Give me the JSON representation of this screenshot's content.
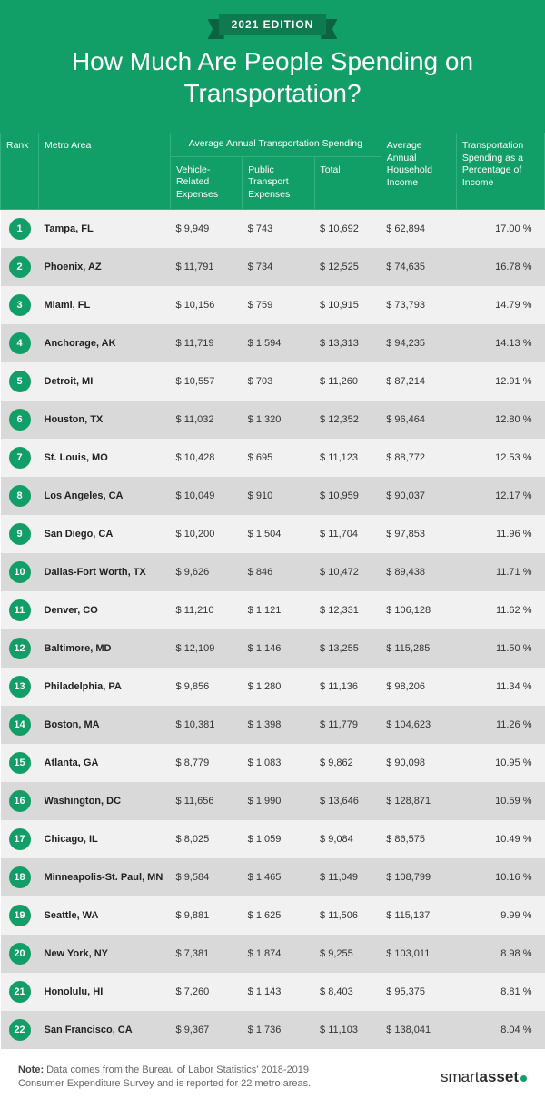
{
  "theme": {
    "primary": "#129e67",
    "primary_dark": "#0d7a50",
    "ribbon_end": "#0b6340",
    "row_odd": "#f1f1f1",
    "row_even": "#d9d9d9",
    "text": "#333333"
  },
  "header": {
    "edition": "2021 EDITION",
    "title": "How Much Are People Spending on Transportation?"
  },
  "table": {
    "columns": {
      "rank": "Rank",
      "metro": "Metro Area",
      "group_spending": "Average Annual Transportation Spending",
      "vehicle": "Vehicle-Related Expenses",
      "public": "Public Transport Expenses",
      "total": "Total",
      "income": "Average Annual Household Income",
      "pct": "Transportation Spending as a Percentage of Income"
    },
    "rows": [
      {
        "rank": 1,
        "metro": "Tampa, FL",
        "vehicle": "9,949",
        "public": "743",
        "total": "10,692",
        "income": "62,894",
        "pct": "17.00 %"
      },
      {
        "rank": 2,
        "metro": "Phoenix, AZ",
        "vehicle": "11,791",
        "public": "734",
        "total": "12,525",
        "income": "74,635",
        "pct": "16.78 %"
      },
      {
        "rank": 3,
        "metro": "Miami, FL",
        "vehicle": "10,156",
        "public": "759",
        "total": "10,915",
        "income": "73,793",
        "pct": "14.79 %"
      },
      {
        "rank": 4,
        "metro": "Anchorage, AK",
        "vehicle": "11,719",
        "public": "1,594",
        "total": "13,313",
        "income": "94,235",
        "pct": "14.13 %"
      },
      {
        "rank": 5,
        "metro": "Detroit, MI",
        "vehicle": "10,557",
        "public": "703",
        "total": "11,260",
        "income": "87,214",
        "pct": "12.91 %"
      },
      {
        "rank": 6,
        "metro": "Houston, TX",
        "vehicle": "11,032",
        "public": "1,320",
        "total": "12,352",
        "income": "96,464",
        "pct": "12.80 %"
      },
      {
        "rank": 7,
        "metro": "St. Louis, MO",
        "vehicle": "10,428",
        "public": "695",
        "total": "11,123",
        "income": "88,772",
        "pct": "12.53 %"
      },
      {
        "rank": 8,
        "metro": "Los Angeles, CA",
        "vehicle": "10,049",
        "public": "910",
        "total": "10,959",
        "income": "90,037",
        "pct": "12.17 %"
      },
      {
        "rank": 9,
        "metro": "San Diego, CA",
        "vehicle": "10,200",
        "public": "1,504",
        "total": "11,704",
        "income": "97,853",
        "pct": "11.96 %"
      },
      {
        "rank": 10,
        "metro": "Dallas-Fort Worth, TX",
        "vehicle": "9,626",
        "public": "846",
        "total": "10,472",
        "income": "89,438",
        "pct": "11.71 %"
      },
      {
        "rank": 11,
        "metro": "Denver, CO",
        "vehicle": "11,210",
        "public": "1,121",
        "total": "12,331",
        "income": "106,128",
        "pct": "11.62 %"
      },
      {
        "rank": 12,
        "metro": "Baltimore, MD",
        "vehicle": "12,109",
        "public": "1,146",
        "total": "13,255",
        "income": "115,285",
        "pct": "11.50 %"
      },
      {
        "rank": 13,
        "metro": "Philadelphia, PA",
        "vehicle": "9,856",
        "public": "1,280",
        "total": "11,136",
        "income": "98,206",
        "pct": "11.34 %"
      },
      {
        "rank": 14,
        "metro": "Boston, MA",
        "vehicle": "10,381",
        "public": "1,398",
        "total": "11,779",
        "income": "104,623",
        "pct": "11.26 %"
      },
      {
        "rank": 15,
        "metro": "Atlanta, GA",
        "vehicle": "8,779",
        "public": "1,083",
        "total": "9,862",
        "income": "90,098",
        "pct": "10.95 %"
      },
      {
        "rank": 16,
        "metro": "Washington, DC",
        "vehicle": "11,656",
        "public": "1,990",
        "total": "13,646",
        "income": "128,871",
        "pct": "10.59 %"
      },
      {
        "rank": 17,
        "metro": "Chicago, IL",
        "vehicle": "8,025",
        "public": "1,059",
        "total": "9,084",
        "income": "86,575",
        "pct": "10.49 %"
      },
      {
        "rank": 18,
        "metro": "Minneapolis-St. Paul, MN",
        "vehicle": "9,584",
        "public": "1,465",
        "total": "11,049",
        "income": "108,799",
        "pct": "10.16 %"
      },
      {
        "rank": 19,
        "metro": "Seattle, WA",
        "vehicle": "9,881",
        "public": "1,625",
        "total": "11,506",
        "income": "115,137",
        "pct": "9.99 %"
      },
      {
        "rank": 20,
        "metro": "New York, NY",
        "vehicle": "7,381",
        "public": "1,874",
        "total": "9,255",
        "income": "103,011",
        "pct": "8.98 %"
      },
      {
        "rank": 21,
        "metro": "Honolulu, HI",
        "vehicle": "7,260",
        "public": "1,143",
        "total": "8,403",
        "income": "95,375",
        "pct": "8.81 %"
      },
      {
        "rank": 22,
        "metro": "San Francisco, CA",
        "vehicle": "9,367",
        "public": "1,736",
        "total": "11,103",
        "income": "138,041",
        "pct": "8.04 %"
      }
    ]
  },
  "footer": {
    "note_label": "Note:",
    "note_text": "Data comes from the Bureau of Labor Statistics' 2018-2019 Consumer Expenditure Survey and is reported for 22 metro areas.",
    "logo_light": "smart",
    "logo_bold": "asset"
  }
}
